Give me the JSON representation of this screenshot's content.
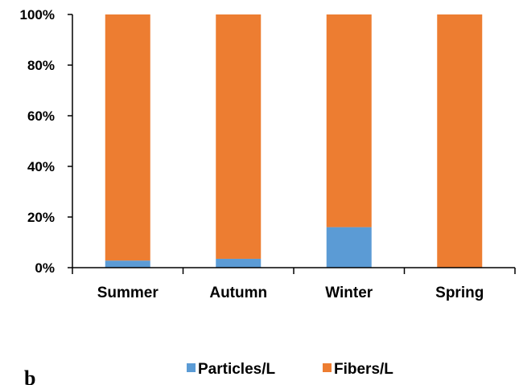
{
  "panel_label": "b",
  "chart_data": {
    "type": "bar",
    "stacked": true,
    "percent": true,
    "categories": [
      "Summer",
      "Autumn",
      "Winter",
      "Spring"
    ],
    "series": [
      {
        "name": "Particles/L",
        "color": "#5b9bd5",
        "values": [
          2.8,
          3.5,
          16.0,
          0.0
        ]
      },
      {
        "name": "Fibers/L",
        "color": "#ed7d31",
        "values": [
          97.2,
          96.5,
          84.0,
          100.0
        ]
      }
    ],
    "y_ticks": [
      "0%",
      "20%",
      "40%",
      "60%",
      "80%",
      "100%"
    ],
    "ylim": [
      0,
      100
    ],
    "title": "",
    "xlabel": "",
    "ylabel": "",
    "grid": false,
    "legend_position": "bottom"
  }
}
